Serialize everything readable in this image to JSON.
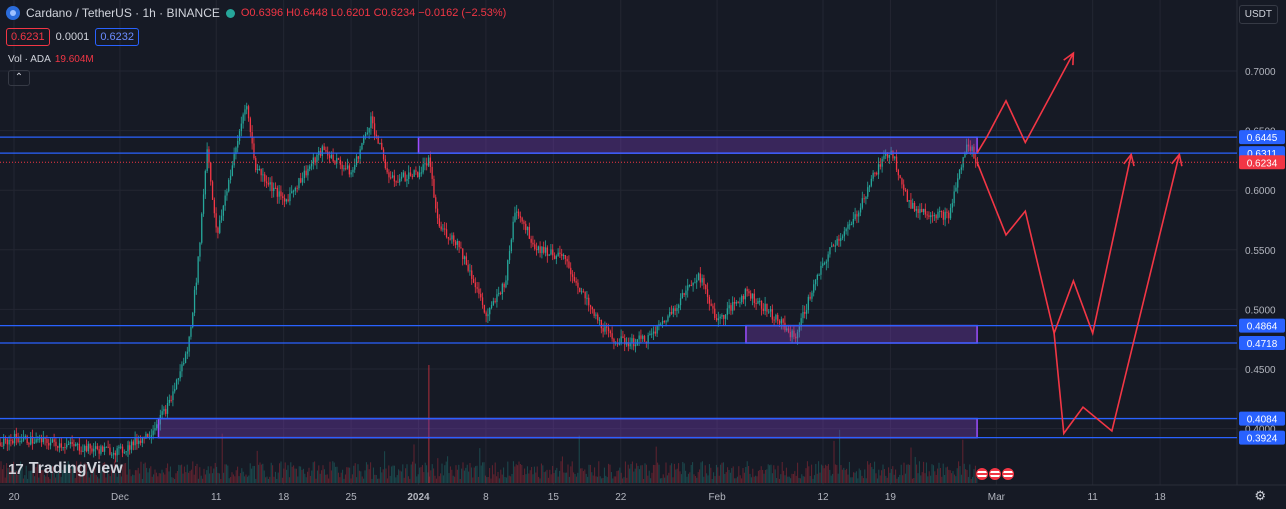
{
  "header": {
    "symbol": "Cardano / TetherUS · 1h · BINANCE",
    "open": "O0.6396",
    "high": "H0.6448",
    "low": "L0.6201",
    "close": "C0.6234",
    "change": "−0.0162 (−2.53%)"
  },
  "quote": {
    "sell": "0.6231",
    "spread": "0.0001",
    "buy": "0.6232"
  },
  "volume": {
    "label": "Vol · ADA",
    "value": "19.604M"
  },
  "currency_button": "USDT",
  "brand": "TradingView",
  "colors": {
    "bg": "#161a25",
    "grid": "#232632",
    "up": "#26a69a",
    "down": "#f23645",
    "level": "#2962ff",
    "zone": "#7b3fbf",
    "forecast": "#f23645"
  },
  "icons": [
    "coin-icon",
    "status-dot-icon",
    "collapse-chevron-icon",
    "settings-gear-icon",
    "flag-icon"
  ],
  "chart_data": {
    "type": "candlestick",
    "title": "Cardano / TetherUS · 1h · BINANCE",
    "y_ticks": [
      "0.7000",
      "0.6500",
      "0.6000",
      "0.5500",
      "0.5000",
      "0.4500",
      "0.4000"
    ],
    "x_ticks": [
      "20",
      "Dec",
      "11",
      "18",
      "25",
      "2024",
      "8",
      "15",
      "22",
      "Feb",
      "12",
      "19",
      "Mar",
      "11",
      "18"
    ],
    "ylim": [
      0.375,
      0.72
    ],
    "price_labels": [
      {
        "text": "0.6445",
        "value": 0.6445
      },
      {
        "text": "0.6311",
        "value": 0.6311
      },
      {
        "text": "0.6234",
        "value": 0.6234
      },
      {
        "text": "0.4864",
        "value": 0.4864
      },
      {
        "text": "0.4718",
        "value": 0.4718
      },
      {
        "text": "0.4084",
        "value": 0.4084
      },
      {
        "text": "0.3924",
        "value": 0.3924
      }
    ],
    "horizontal_levels": [
      0.6445,
      0.6311,
      0.4864,
      0.4718,
      0.4084,
      0.3924
    ],
    "zones": [
      {
        "x_from": "2024-01-01",
        "x_to": "2024-02-28",
        "low": 0.6311,
        "high": 0.6445
      },
      {
        "x_from": "2024-02-04",
        "x_to": "2024-02-28",
        "low": 0.4718,
        "high": 0.4864
      },
      {
        "x_from": "2023-12-05",
        "x_to": "2024-02-28",
        "low": 0.3924,
        "high": 0.4084
      }
    ],
    "forecast_paths": [
      [
        [
          "2024-02-28",
          0.6311
        ],
        [
          "2024-02-29",
          0.6445
        ],
        [
          "2024-03-02",
          0.675
        ],
        [
          "2024-03-04",
          0.64
        ],
        [
          "2024-03-09",
          0.715
        ]
      ],
      [
        [
          "2024-02-28",
          0.6234
        ],
        [
          "2024-03-02",
          0.5625
        ],
        [
          "2024-03-04",
          0.5825
        ],
        [
          "2024-03-07",
          0.48
        ],
        [
          "2024-03-09",
          0.524
        ],
        [
          "2024-03-11",
          0.48
        ],
        [
          "2024-03-15",
          0.63
        ]
      ],
      [
        [
          "2024-03-07",
          0.48
        ],
        [
          "2024-03-08",
          0.396
        ],
        [
          "2024-03-10",
          0.418
        ],
        [
          "2024-03-13",
          0.398
        ],
        [
          "2024-03-20",
          0.63
        ]
      ]
    ],
    "price_path": [
      [
        "2023-11-17",
        0.381
      ],
      [
        "2023-11-20",
        0.392
      ],
      [
        "2023-11-24",
        0.388
      ],
      [
        "2023-11-28",
        0.383
      ],
      [
        "2023-12-01",
        0.381
      ],
      [
        "2023-12-04",
        0.396
      ],
      [
        "2023-12-06",
        0.42
      ],
      [
        "2023-12-08",
        0.467
      ],
      [
        "2023-12-09",
        0.535
      ],
      [
        "2023-12-10",
        0.637
      ],
      [
        "2023-12-11",
        0.56
      ],
      [
        "2023-12-12",
        0.6
      ],
      [
        "2023-12-13",
        0.635
      ],
      [
        "2023-12-14",
        0.675
      ],
      [
        "2023-12-15",
        0.62
      ],
      [
        "2023-12-18",
        0.59
      ],
      [
        "2023-12-20",
        0.613
      ],
      [
        "2023-12-22",
        0.634
      ],
      [
        "2023-12-25",
        0.614
      ],
      [
        "2023-12-27",
        0.66
      ],
      [
        "2023-12-29",
        0.608
      ],
      [
        "2024-01-01",
        0.615
      ],
      [
        "2024-01-02",
        0.625
      ],
      [
        "2024-01-03",
        0.57
      ],
      [
        "2024-01-05",
        0.556
      ],
      [
        "2024-01-07",
        0.518
      ],
      [
        "2024-01-08",
        0.493
      ],
      [
        "2024-01-10",
        0.525
      ],
      [
        "2024-01-11",
        0.587
      ],
      [
        "2024-01-13",
        0.553
      ],
      [
        "2024-01-16",
        0.543
      ],
      [
        "2024-01-19",
        0.497
      ],
      [
        "2024-01-21",
        0.475
      ],
      [
        "2024-01-23",
        0.472
      ],
      [
        "2024-01-25",
        0.477
      ],
      [
        "2024-01-27",
        0.496
      ],
      [
        "2024-01-30",
        0.53
      ],
      [
        "2024-02-01",
        0.49
      ],
      [
        "2024-02-04",
        0.515
      ],
      [
        "2024-02-07",
        0.493
      ],
      [
        "2024-02-09",
        0.476
      ],
      [
        "2024-02-11",
        0.52
      ],
      [
        "2024-02-13",
        0.555
      ],
      [
        "2024-02-15",
        0.572
      ],
      [
        "2024-02-17",
        0.61
      ],
      [
        "2024-02-19",
        0.635
      ],
      [
        "2024-02-21",
        0.586
      ],
      [
        "2024-02-23",
        0.581
      ],
      [
        "2024-02-25",
        0.578
      ],
      [
        "2024-02-26",
        0.612
      ],
      [
        "2024-02-27",
        0.64
      ],
      [
        "2024-02-28",
        0.6234
      ]
    ]
  }
}
